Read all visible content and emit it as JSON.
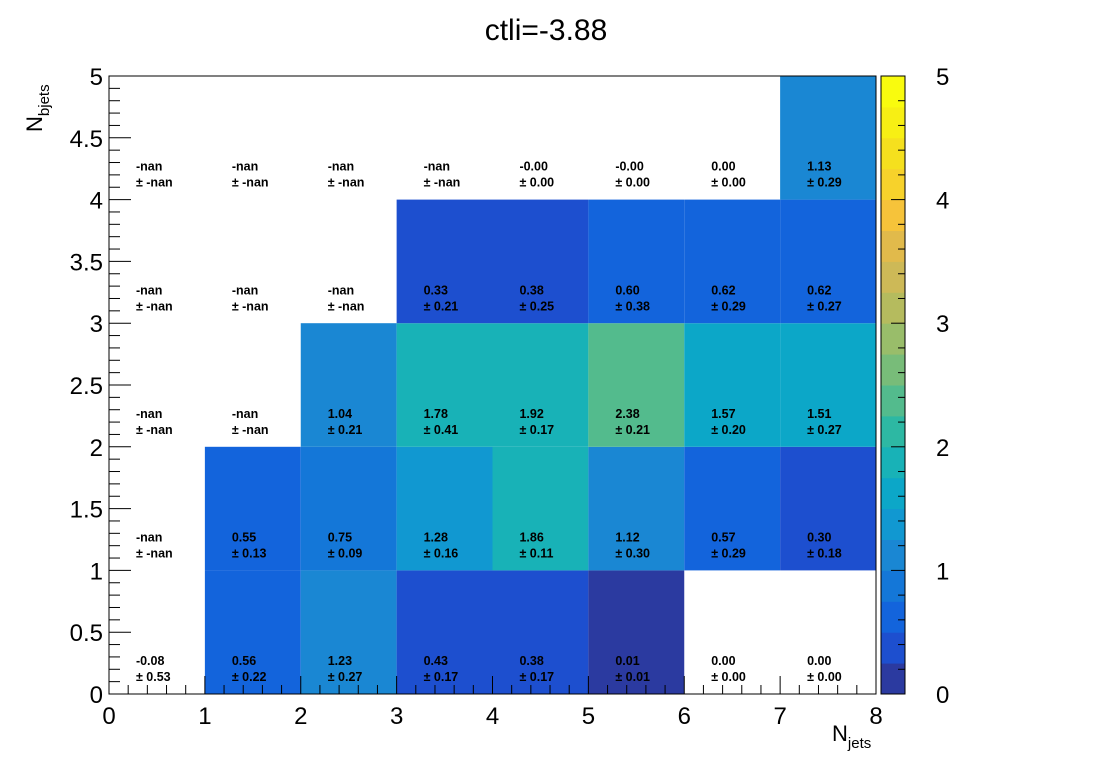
{
  "chart_data": {
    "type": "heatmap",
    "title": "ctli=-3.88",
    "xlabel": {
      "main": "N",
      "sub": "jets"
    },
    "ylabel": {
      "main": "N",
      "sub": "bjets"
    },
    "xlim": [
      0,
      8
    ],
    "ylim": [
      0,
      5
    ],
    "zlim": [
      0,
      5
    ],
    "x_ticks": [
      "0",
      "1",
      "2",
      "3",
      "4",
      "5",
      "6",
      "7",
      "8"
    ],
    "y_ticks": [
      "0",
      "0.5",
      "1",
      "1.5",
      "2",
      "2.5",
      "3",
      "3.5",
      "4",
      "4.5",
      "5"
    ],
    "z_ticks": [
      "0",
      "1",
      "2",
      "3",
      "4",
      "5"
    ],
    "palette": [
      "#2b3aa0",
      "#1d4fcf",
      "#1364dc",
      "#1477d8",
      "#1a87d3",
      "#1198d1",
      "#0ca7c8",
      "#18b2b7",
      "#2db8a3",
      "#53bb8d",
      "#78bc79",
      "#99bd6a",
      "#b5bb5e",
      "#cdb957",
      "#e1ba4b",
      "#f6c33a",
      "#f7d22b",
      "#f5e01e",
      "#f7ef14",
      "#f9fb0e"
    ],
    "cells": [
      {
        "x": 0.5,
        "y": 0.25,
        "value": -0.08,
        "label": "-0.08",
        "error": "± 0.53"
      },
      {
        "x": 1.5,
        "y": 0.25,
        "value": 0.56,
        "label": "0.56",
        "error": "± 0.22"
      },
      {
        "x": 2.5,
        "y": 0.25,
        "value": 1.23,
        "label": "1.23",
        "error": "± 0.27"
      },
      {
        "x": 3.5,
        "y": 0.25,
        "value": 0.43,
        "label": "0.43",
        "error": "± 0.17"
      },
      {
        "x": 4.5,
        "y": 0.25,
        "value": 0.38,
        "label": "0.38",
        "error": "± 0.17"
      },
      {
        "x": 5.5,
        "y": 0.25,
        "value": 0.01,
        "label": "0.01",
        "error": "± 0.01"
      },
      {
        "x": 6.5,
        "y": 0.25,
        "value": 0.0,
        "label": "0.00",
        "error": "± 0.00"
      },
      {
        "x": 7.5,
        "y": 0.25,
        "value": 0.0,
        "label": "0.00",
        "error": "± 0.00"
      },
      {
        "x": 0.5,
        "y": 1.25,
        "value": null,
        "label": "-nan",
        "error": "± -nan"
      },
      {
        "x": 1.5,
        "y": 1.25,
        "value": 0.55,
        "label": "0.55",
        "error": "± 0.13"
      },
      {
        "x": 2.5,
        "y": 1.25,
        "value": 0.75,
        "label": "0.75",
        "error": "± 0.09"
      },
      {
        "x": 3.5,
        "y": 1.25,
        "value": 1.28,
        "label": "1.28",
        "error": "± 0.16"
      },
      {
        "x": 4.5,
        "y": 1.25,
        "value": 1.86,
        "label": "1.86",
        "error": "± 0.11"
      },
      {
        "x": 5.5,
        "y": 1.25,
        "value": 1.12,
        "label": "1.12",
        "error": "± 0.30"
      },
      {
        "x": 6.5,
        "y": 1.25,
        "value": 0.57,
        "label": "0.57",
        "error": "± 0.29"
      },
      {
        "x": 7.5,
        "y": 1.25,
        "value": 0.3,
        "label": "0.30",
        "error": "± 0.18"
      },
      {
        "x": 0.5,
        "y": 2.25,
        "value": null,
        "label": "-nan",
        "error": "± -nan"
      },
      {
        "x": 1.5,
        "y": 2.25,
        "value": null,
        "label": "-nan",
        "error": "± -nan"
      },
      {
        "x": 2.5,
        "y": 2.25,
        "value": 1.04,
        "label": "1.04",
        "error": "± 0.21"
      },
      {
        "x": 3.5,
        "y": 2.25,
        "value": 1.78,
        "label": "1.78",
        "error": "± 0.41"
      },
      {
        "x": 4.5,
        "y": 2.25,
        "value": 1.92,
        "label": "1.92",
        "error": "± 0.17"
      },
      {
        "x": 5.5,
        "y": 2.25,
        "value": 2.38,
        "label": "2.38",
        "error": "± 0.21"
      },
      {
        "x": 6.5,
        "y": 2.25,
        "value": 1.57,
        "label": "1.57",
        "error": "± 0.20"
      },
      {
        "x": 7.5,
        "y": 2.25,
        "value": 1.51,
        "label": "1.51",
        "error": "± 0.27"
      },
      {
        "x": 0.5,
        "y": 3.25,
        "value": null,
        "label": "-nan",
        "error": "± -nan"
      },
      {
        "x": 1.5,
        "y": 3.25,
        "value": null,
        "label": "-nan",
        "error": "± -nan"
      },
      {
        "x": 2.5,
        "y": 3.25,
        "value": null,
        "label": "-nan",
        "error": "± -nan"
      },
      {
        "x": 3.5,
        "y": 3.25,
        "value": 0.33,
        "label": "0.33",
        "error": "± 0.21"
      },
      {
        "x": 4.5,
        "y": 3.25,
        "value": 0.38,
        "label": "0.38",
        "error": "± 0.25"
      },
      {
        "x": 5.5,
        "y": 3.25,
        "value": 0.6,
        "label": "0.60",
        "error": "± 0.38"
      },
      {
        "x": 6.5,
        "y": 3.25,
        "value": 0.62,
        "label": "0.62",
        "error": "± 0.29"
      },
      {
        "x": 7.5,
        "y": 3.25,
        "value": 0.62,
        "label": "0.62",
        "error": "± 0.27"
      },
      {
        "x": 0.5,
        "y": 4.25,
        "value": null,
        "label": "-nan",
        "error": "± -nan"
      },
      {
        "x": 1.5,
        "y": 4.25,
        "value": null,
        "label": "-nan",
        "error": "± -nan"
      },
      {
        "x": 2.5,
        "y": 4.25,
        "value": null,
        "label": "-nan",
        "error": "± -nan"
      },
      {
        "x": 3.5,
        "y": 4.25,
        "value": null,
        "label": "-nan",
        "error": "± -nan"
      },
      {
        "x": 4.5,
        "y": 4.25,
        "value": -0.0,
        "label": "-0.00",
        "error": "± 0.00"
      },
      {
        "x": 5.5,
        "y": 4.25,
        "value": -0.0,
        "label": "-0.00",
        "error": "± 0.00"
      },
      {
        "x": 6.5,
        "y": 4.25,
        "value": 0.0,
        "label": "0.00",
        "error": "± 0.00"
      },
      {
        "x": 7.5,
        "y": 4.25,
        "value": 1.13,
        "label": "1.13",
        "error": "± 0.29"
      }
    ]
  }
}
